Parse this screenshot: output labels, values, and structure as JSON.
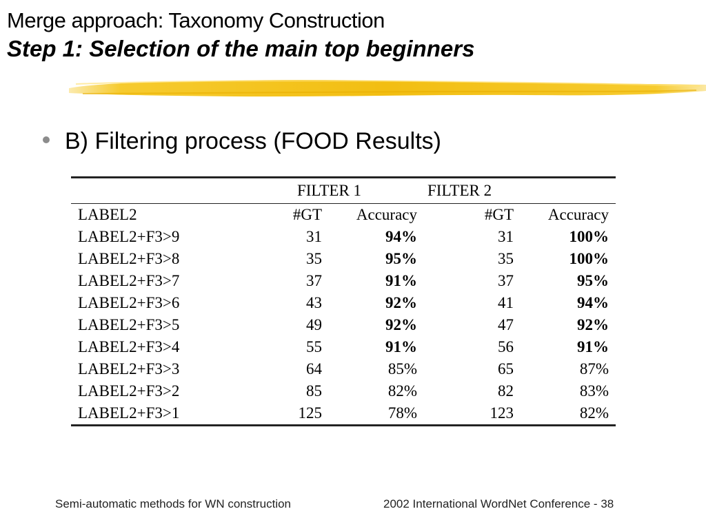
{
  "slide": {
    "title_line1": "Merge approach: Taxonomy Construction",
    "title_line2": "Step 1: Selection of the main top beginners",
    "bullet": "B) Filtering process (FOOD Results)",
    "highlight_color": "#F5C518"
  },
  "table": {
    "group_headers": [
      "FILTER 1",
      "FILTER 2"
    ],
    "columns": [
      "LABEL2",
      "#GT",
      "Accuracy",
      "#GT",
      "Accuracy"
    ],
    "rows": [
      {
        "label": "LABEL2+F3>9",
        "gt1": "31",
        "acc1": "94%",
        "acc1_bold": true,
        "gt2": "31",
        "acc2": "100%",
        "acc2_bold": true
      },
      {
        "label": "LABEL2+F3>8",
        "gt1": "35",
        "acc1": "95%",
        "acc1_bold": true,
        "gt2": "35",
        "acc2": "100%",
        "acc2_bold": true
      },
      {
        "label": "LABEL2+F3>7",
        "gt1": "37",
        "acc1": "91%",
        "acc1_bold": true,
        "gt2": "37",
        "acc2": "95%",
        "acc2_bold": true
      },
      {
        "label": "LABEL2+F3>6",
        "gt1": "43",
        "acc1": "92%",
        "acc1_bold": true,
        "gt2": "41",
        "acc2": "94%",
        "acc2_bold": true
      },
      {
        "label": "LABEL2+F3>5",
        "gt1": "49",
        "acc1": "92%",
        "acc1_bold": true,
        "gt2": "47",
        "acc2": "92%",
        "acc2_bold": true
      },
      {
        "label": "LABEL2+F3>4",
        "gt1": "55",
        "acc1": "91%",
        "acc1_bold": true,
        "gt2": "56",
        "acc2": "91%",
        "acc2_bold": true
      },
      {
        "label": "LABEL2+F3>3",
        "gt1": "64",
        "acc1": "85%",
        "acc1_bold": false,
        "gt2": "65",
        "acc2": "87%",
        "acc2_bold": false
      },
      {
        "label": "LABEL2+F3>2",
        "gt1": "85",
        "acc1": "82%",
        "acc1_bold": false,
        "gt2": "82",
        "acc2": "83%",
        "acc2_bold": false
      },
      {
        "label": "LABEL2+F3>1",
        "gt1": "125",
        "acc1": "78%",
        "acc1_bold": false,
        "gt2": "123",
        "acc2": "82%",
        "acc2_bold": false
      }
    ]
  },
  "footer": {
    "left": "Semi-automatic methods for WN construction",
    "right": "2002 International WordNet Conference - 38"
  }
}
